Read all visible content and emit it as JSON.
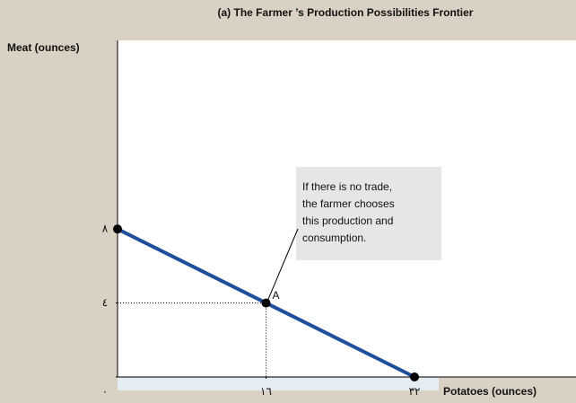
{
  "chart_data": {
    "type": "line",
    "title": "(a) The Farmer ’s Production Possibilities Frontier",
    "y_label": "Meat (ounces)",
    "x_label": "Potatoes (ounces)",
    "x": [
      0,
      16,
      32
    ],
    "series": [
      {
        "name": "Production Possibilities Frontier",
        "color": "#1f4e9c",
        "values": [
          8,
          4,
          0
        ]
      }
    ],
    "xlim": [
      0,
      49.4
    ],
    "ylim": [
      0,
      18.2
    ],
    "xticks": [
      {
        "value": 16,
        "label": "١٦"
      },
      {
        "value": 32,
        "label": "٣٢"
      }
    ],
    "yticks": [
      {
        "value": 0,
        "label": "٠"
      },
      {
        "value": 4,
        "label": "٤"
      },
      {
        "value": 8,
        "label": "٨"
      }
    ],
    "grid": false,
    "annotations": [
      {
        "text": "A",
        "point": 1
      },
      {
        "lines": [
          "If there is no trade,",
          "the farmer chooses",
          "this production and",
          "consumption."
        ],
        "point": 1
      }
    ]
  }
}
